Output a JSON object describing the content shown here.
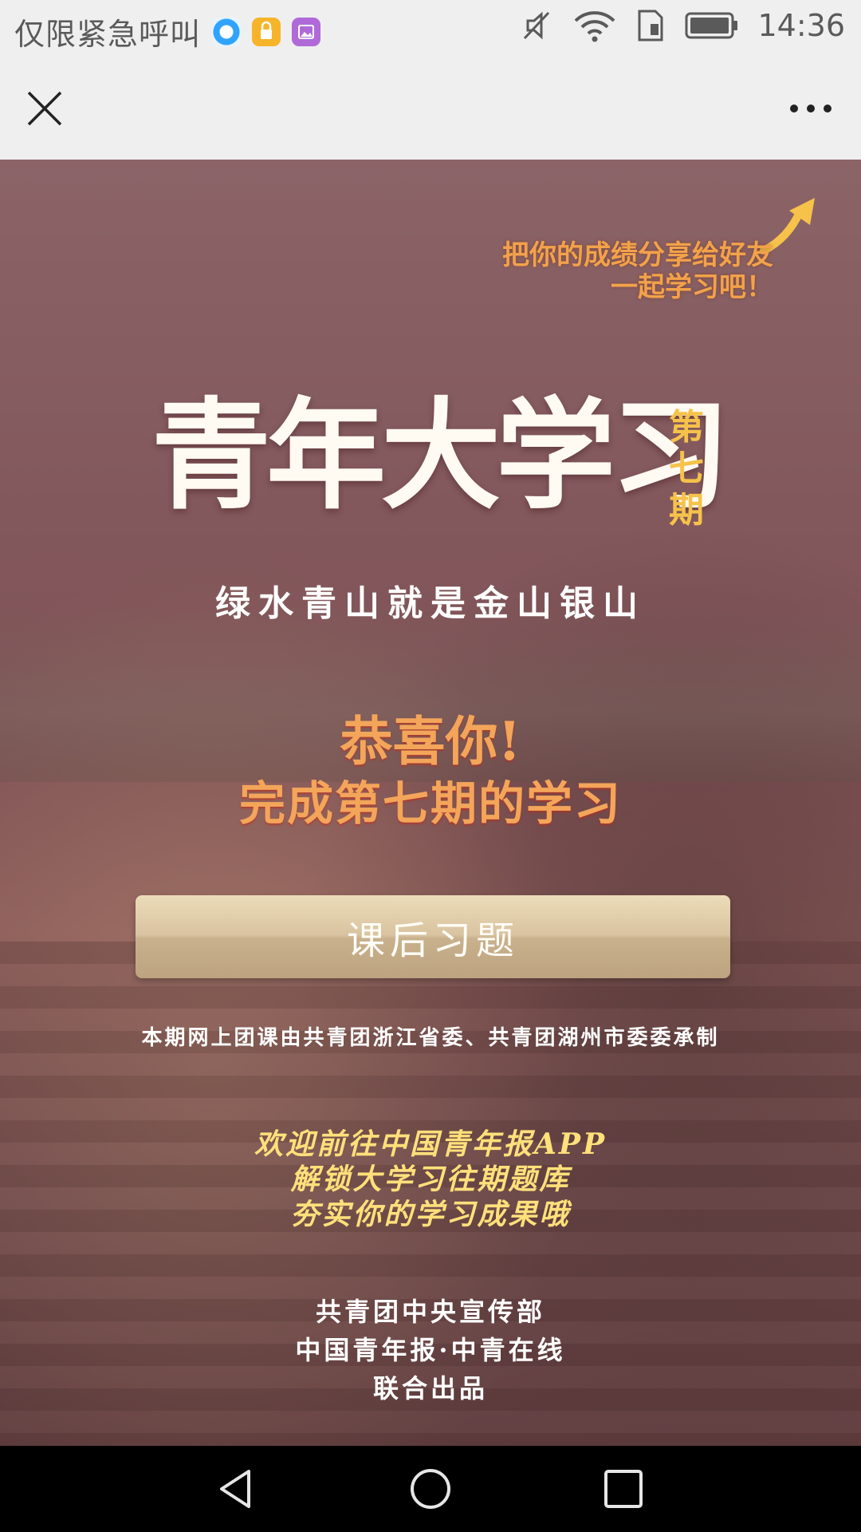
{
  "status_bar": {
    "carrier": "仅限紧急呼叫",
    "time": "14:36",
    "icons": [
      "browser-app-icon",
      "lock-app-icon",
      "gallery-app-icon",
      "mute-icon",
      "wifi-icon",
      "sim-icon",
      "battery-icon"
    ]
  },
  "web_bar": {
    "close_icon": "close-icon",
    "more_icon": "more-icon"
  },
  "content": {
    "share_prompt_line1": "把你的成绩分享给好友",
    "share_prompt_line2": "一起学习吧！",
    "title": "青年大学习",
    "issue_line1": "第",
    "issue_line2": "七",
    "issue_line3": "期",
    "subtitle": "绿水青山就是金山银山",
    "congrats_line1": "恭喜你!",
    "congrats_line2": "完成第七期的学习",
    "quiz_button": "课后习题",
    "producer_note": "本期网上团课由共青团浙江省委、共青团湖州市委委承制",
    "app_promo_line1": "欢迎前往中国青年报APP",
    "app_promo_line2": "解锁大学习往期题库",
    "app_promo_line3": "夯实你的学习成果哦",
    "credits_line1": "共青团中央宣传部",
    "credits_line2": "中国青年报·中青在线",
    "credits_line3": "联合出品"
  },
  "nav_bar": {
    "back_icon": "back-icon",
    "home_icon": "home-icon",
    "recent_icon": "recent-apps-icon"
  },
  "colors": {
    "share_text": "#f2a24a",
    "issue_badge": "#f6c24a",
    "congrats": "#f3a55a",
    "promo": "#ffe07a",
    "button": "#d9c3a0"
  }
}
